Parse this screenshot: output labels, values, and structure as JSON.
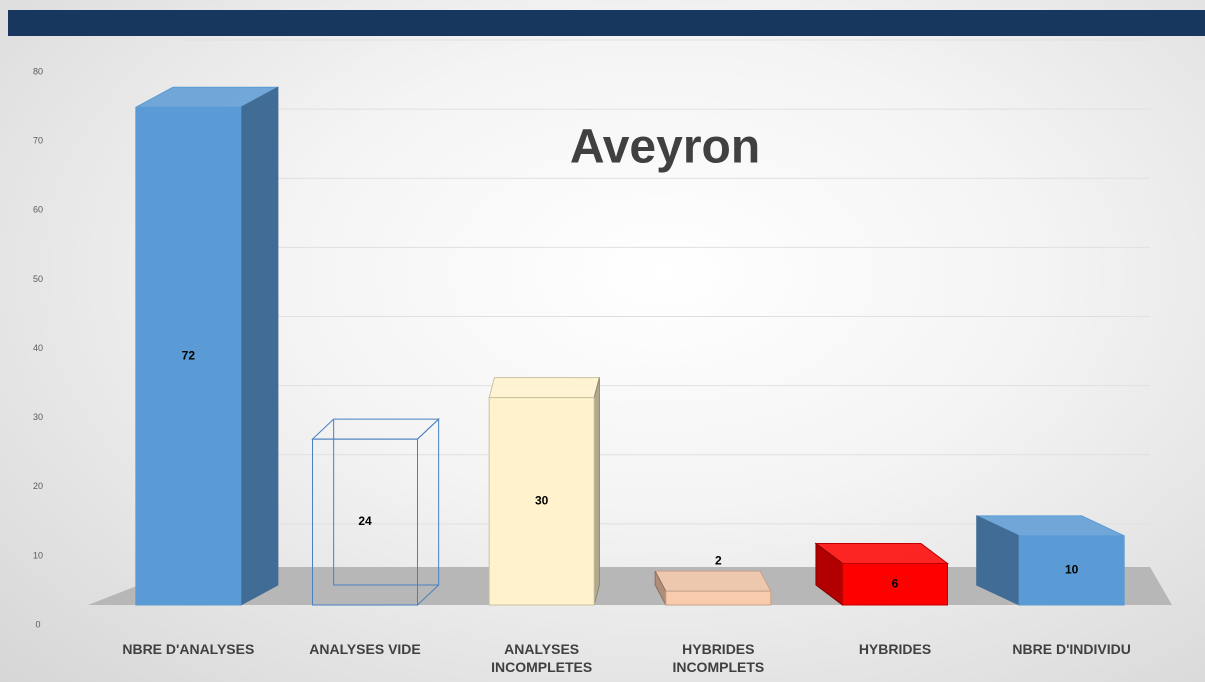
{
  "chart_data": {
    "type": "bar3d",
    "title": "Aveyron",
    "categories": [
      "NBRE D'ANALYSES",
      "ANALYSES VIDE",
      "ANALYSES INCOMPLETES",
      "HYBRIDES INCOMPLETS",
      "HYBRIDES",
      "NBRE D'INDIVIDU"
    ],
    "values": [
      72,
      24,
      30,
      2,
      6,
      10
    ],
    "colors": [
      "#5b9bd5",
      "#ffffff",
      "#fff2cc",
      "#f8cbad",
      "#ff0000",
      "#5b9bd5"
    ],
    "edge_colors": [
      "#5b9bd5",
      "#4a7fc0",
      "#c9c2a0",
      "#c9a088",
      "#c00000",
      "#5b9bd5"
    ],
    "ylim": [
      0,
      80
    ],
    "yticks": [
      0,
      10,
      20,
      30,
      40,
      50,
      60,
      70,
      80
    ],
    "grid": true
  }
}
